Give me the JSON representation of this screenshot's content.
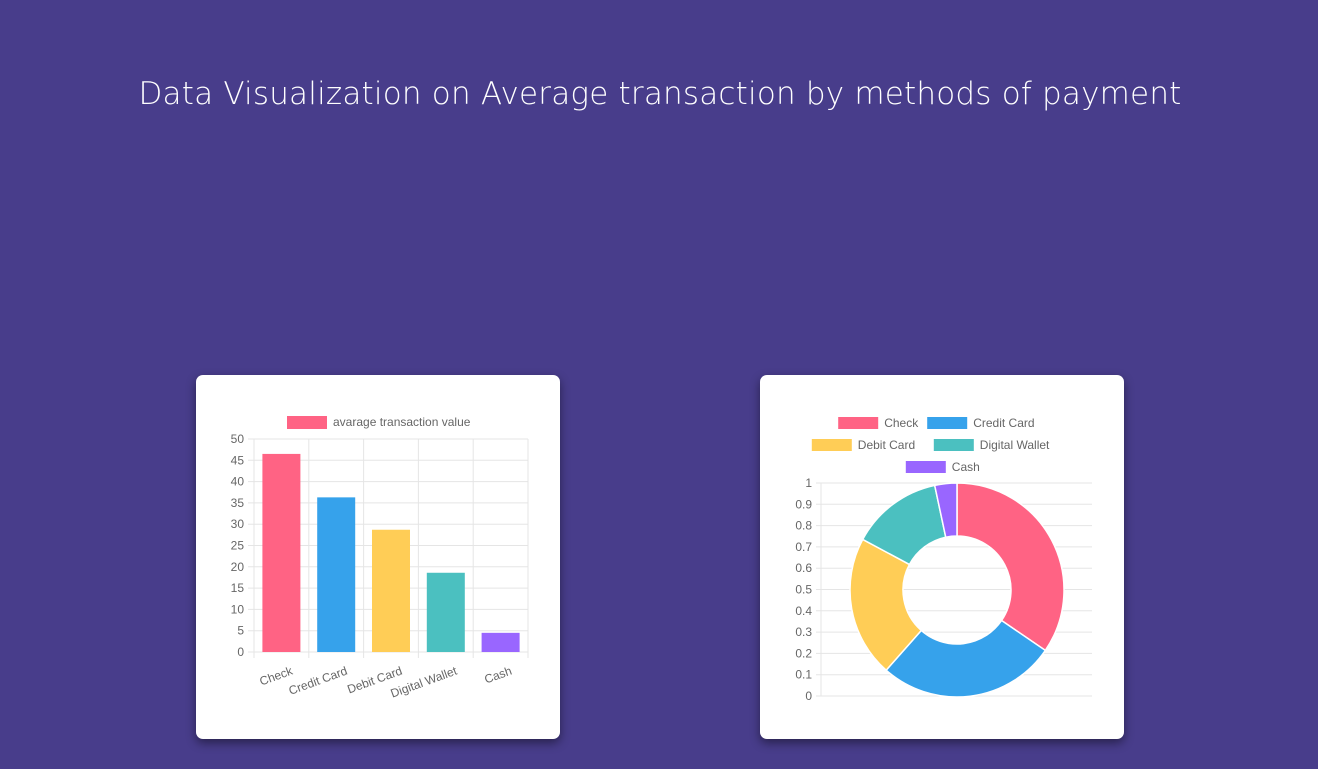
{
  "header": {
    "title": "Data Visualization on Average transaction by methods of payment"
  },
  "colors": {
    "background": "#483d8b",
    "card": "#ffffff",
    "grid": "#e5e5e5",
    "text": "#666666"
  },
  "chart_data": [
    {
      "type": "bar",
      "legend": [
        "avarage transaction value"
      ],
      "legend_position": "top",
      "categories": [
        "Check",
        "Credit Card",
        "Debit Card",
        "Digital Wallet",
        "Cash"
      ],
      "series": [
        {
          "name": "avarage transaction value",
          "values": [
            46.5,
            36.3,
            28.7,
            18.6,
            4.5
          ],
          "colors": [
            "#ff6384",
            "#36a2eb",
            "#ffcd56",
            "#4bc0c0",
            "#9966ff"
          ]
        }
      ],
      "ylim": [
        0,
        50
      ],
      "yticks": [
        "50",
        "45",
        "40",
        "35",
        "30",
        "25",
        "20",
        "15",
        "10",
        "5",
        "0"
      ],
      "grid": true
    },
    {
      "type": "pie",
      "variant": "doughnut",
      "legend": [
        "Check",
        "Credit Card",
        "Debit Card",
        "Digital Wallet",
        "Cash"
      ],
      "legend_position": "top",
      "values": [
        46.5,
        36.3,
        28.7,
        18.6,
        4.5
      ],
      "colors": [
        "#ff6384",
        "#36a2eb",
        "#ffcd56",
        "#4bc0c0",
        "#9966ff"
      ],
      "ylim": [
        0,
        1
      ],
      "yticks": [
        "1",
        "0.9",
        "0.8",
        "0.7",
        "0.6",
        "0.5",
        "0.4",
        "0.3",
        "0.2",
        "0.1",
        "0"
      ],
      "grid": true
    }
  ]
}
